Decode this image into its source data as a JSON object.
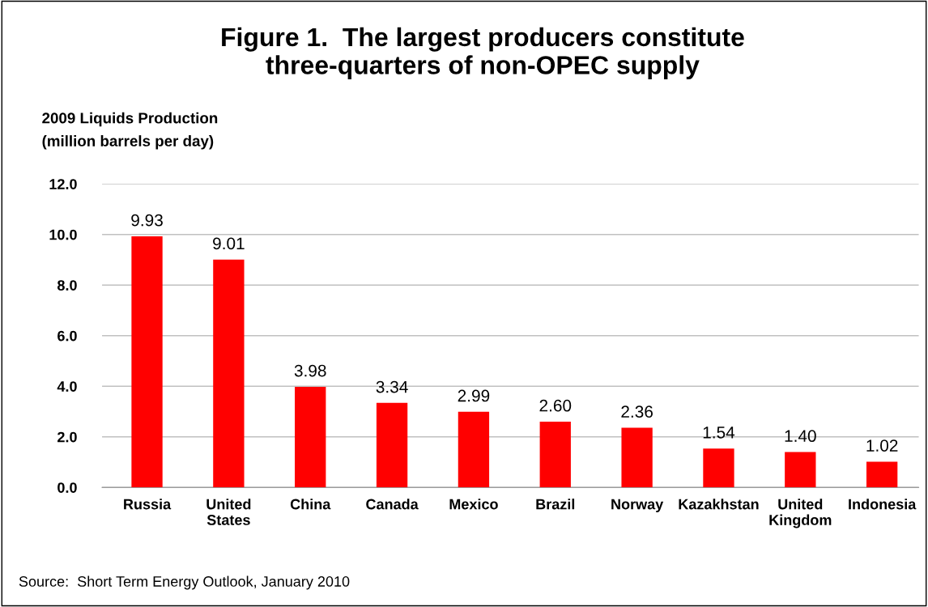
{
  "chart_data": {
    "type": "bar",
    "title": "Figure 1.  The largest producers constitute\nthree-quarters of non-OPEC supply",
    "ylabel": "2009 Liquids Production\n(million barrels per day)",
    "categories": [
      "Russia",
      "United\nStates",
      "China",
      "Canada",
      "Mexico",
      "Brazil",
      "Norway",
      "Kazakhstan",
      "United\nKingdom",
      "Indonesia"
    ],
    "values": [
      9.93,
      9.01,
      3.98,
      3.34,
      2.99,
      2.6,
      2.36,
      1.54,
      1.4,
      1.02
    ],
    "value_labels": [
      "9.93",
      "9.01",
      "3.98",
      "3.34",
      "2.99",
      "2.60",
      "2.36",
      "1.54",
      "1.40",
      "1.02"
    ],
    "color": "#ff0000",
    "ylim": [
      0,
      12
    ],
    "yticks": [
      {
        "value": 0,
        "label": "0.0"
      },
      {
        "value": 2,
        "label": "2.0"
      },
      {
        "value": 4,
        "label": "4.0"
      },
      {
        "value": 6,
        "label": "6.0"
      },
      {
        "value": 8,
        "label": "8.0"
      },
      {
        "value": 10,
        "label": "10.0"
      },
      {
        "value": 12,
        "label": "12.0"
      }
    ],
    "grid": "y",
    "annotations": [
      "Source:  Short Term Energy Outlook, January 2010"
    ]
  }
}
